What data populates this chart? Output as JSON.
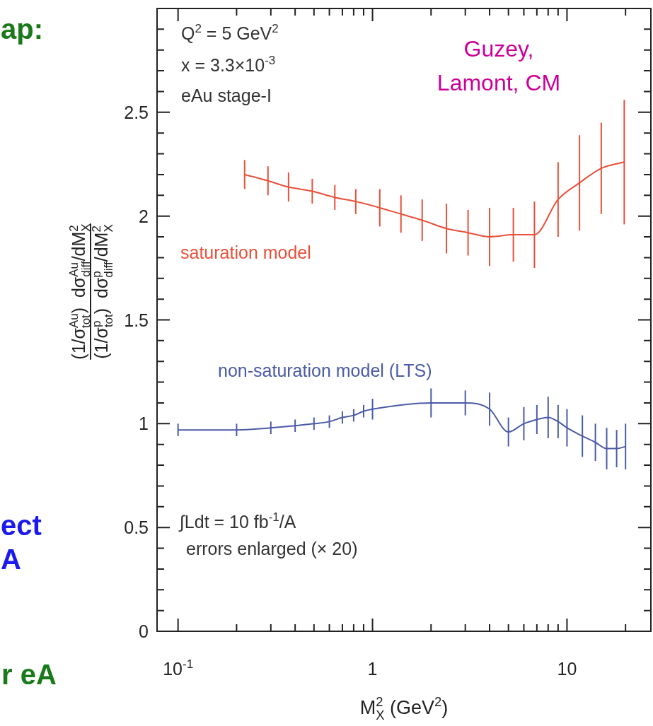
{
  "chart_data": {
    "type": "line",
    "xlabel": "M$_{X}$$^{2}$ (GeV$^{2}$)",
    "ylabel": "(1/σ$_{tot}$$^{Au}$)  dσ$_{diff}$$^{Au}$/dM$_{X}$$^{2}$\n(1/σ$_{tot}$$^{p}$)  dσ$_{diff}$$^{p}$/dM$_{X}$$^{2}$",
    "log": "x",
    "xlim": [
      0.078,
      27
    ],
    "xticks": [
      {
        "value": 0.1,
        "label": "10$^{-1}$"
      },
      {
        "value": 0.2,
        "label": null
      },
      {
        "value": 0.3,
        "label": null
      },
      {
        "value": 0.4,
        "label": null
      },
      {
        "value": 0.5,
        "label": null
      },
      {
        "value": 0.6,
        "label": null
      },
      {
        "value": 0.7,
        "label": null
      },
      {
        "value": 0.8,
        "label": null
      },
      {
        "value": 0.9,
        "label": null
      },
      1,
      {
        "value": 2,
        "label": null
      },
      {
        "value": 3,
        "label": null
      },
      {
        "value": 4,
        "label": null
      },
      {
        "value": 5,
        "label": null
      },
      {
        "value": 6,
        "label": null
      },
      {
        "value": 7,
        "label": null
      },
      {
        "value": 8,
        "label": null
      },
      {
        "value": 9,
        "label": null
      },
      10,
      {
        "value": 20,
        "label": null
      }
    ],
    "ylim": [
      0,
      3
    ],
    "yticks": [
      0,
      {
        "value": 0.1,
        "label": null
      },
      {
        "value": 0.2,
        "label": null
      },
      {
        "value": 0.3,
        "label": null
      },
      {
        "value": 0.4,
        "label": null
      },
      0.5,
      {
        "value": 0.6,
        "label": null
      },
      {
        "value": 0.7,
        "label": null
      },
      {
        "value": 0.8,
        "label": null
      },
      {
        "value": 0.9,
        "label": null
      },
      1,
      {
        "value": 1.1,
        "label": null
      },
      {
        "value": 1.2,
        "label": null
      },
      {
        "value": 1.3,
        "label": null
      },
      {
        "value": 1.4,
        "label": null
      },
      1.5,
      {
        "value": 1.6,
        "label": null
      },
      {
        "value": 1.7,
        "label": null
      },
      {
        "value": 1.8,
        "label": null
      },
      {
        "value": 1.9,
        "label": null
      },
      2,
      {
        "value": 2.1,
        "label": null
      },
      {
        "value": 2.2,
        "label": null
      },
      {
        "value": 2.3,
        "label": null
      },
      {
        "value": 2.4,
        "label": null
      },
      2.5,
      {
        "value": 2.6,
        "label": null
      },
      {
        "value": 2.7,
        "label": null
      },
      {
        "value": 2.8,
        "label": null
      },
      {
        "value": 2.9,
        "label": null
      }
    ],
    "legend": false,
    "marker": "none",
    "series": [
      {
        "name": "saturation model",
        "color": "#e8503a",
        "x": [
          0.22,
          0.29,
          0.37,
          0.49,
          0.64,
          0.82,
          1.09,
          1.4,
          1.8,
          2.4,
          3.1,
          4.0,
          5.3,
          6.8,
          9.0,
          11.6,
          15,
          19.7
        ],
        "values": [
          2.2,
          2.17,
          2.14,
          2.12,
          2.09,
          2.07,
          2.04,
          2.01,
          1.98,
          1.94,
          1.92,
          1.9,
          1.91,
          1.91,
          2.08,
          2.16,
          2.23,
          2.26
        ],
        "errors": [
          0.07,
          0.07,
          0.07,
          0.06,
          0.06,
          0.06,
          0.09,
          0.09,
          0.1,
          0.12,
          0.11,
          0.14,
          0.13,
          0.16,
          0.18,
          0.23,
          0.22,
          0.3
        ]
      },
      {
        "name": "non-saturation model (LTS)",
        "color": "#4b5ba6",
        "x": [
          0.1,
          0.2,
          0.3,
          0.4,
          0.5,
          0.6,
          0.7,
          0.8,
          0.9,
          1.0,
          2,
          3,
          4,
          5,
          6,
          7,
          8,
          9,
          10,
          12,
          14,
          16,
          18,
          20
        ],
        "values": [
          0.97,
          0.97,
          0.98,
          0.99,
          1.0,
          1.01,
          1.03,
          1.04,
          1.06,
          1.07,
          1.1,
          1.1,
          1.07,
          0.96,
          1.0,
          1.02,
          1.03,
          1.01,
          0.98,
          0.94,
          0.91,
          0.88,
          0.88,
          0.89
        ],
        "errors": [
          0.03,
          0.03,
          0.03,
          0.03,
          0.03,
          0.03,
          0.03,
          0.03,
          0.03,
          0.05,
          0.07,
          0.06,
          0.08,
          0.07,
          0.08,
          0.07,
          0.1,
          0.08,
          0.09,
          0.1,
          0.09,
          0.1,
          0.09,
          0.11
        ]
      }
    ],
    "annotations": [
      "Q$^{2}$ = 5 GeV$^{2}$",
      "x = 3.3×10$^{-3}$",
      "eAu stage-I",
      "Guzey,\nLamont, CM",
      "∫Ldt = 10 fb$^{-1}$/A",
      "errors enlarged (× 20)",
      "ap:",
      "ect",
      "A",
      "r eA"
    ]
  }
}
